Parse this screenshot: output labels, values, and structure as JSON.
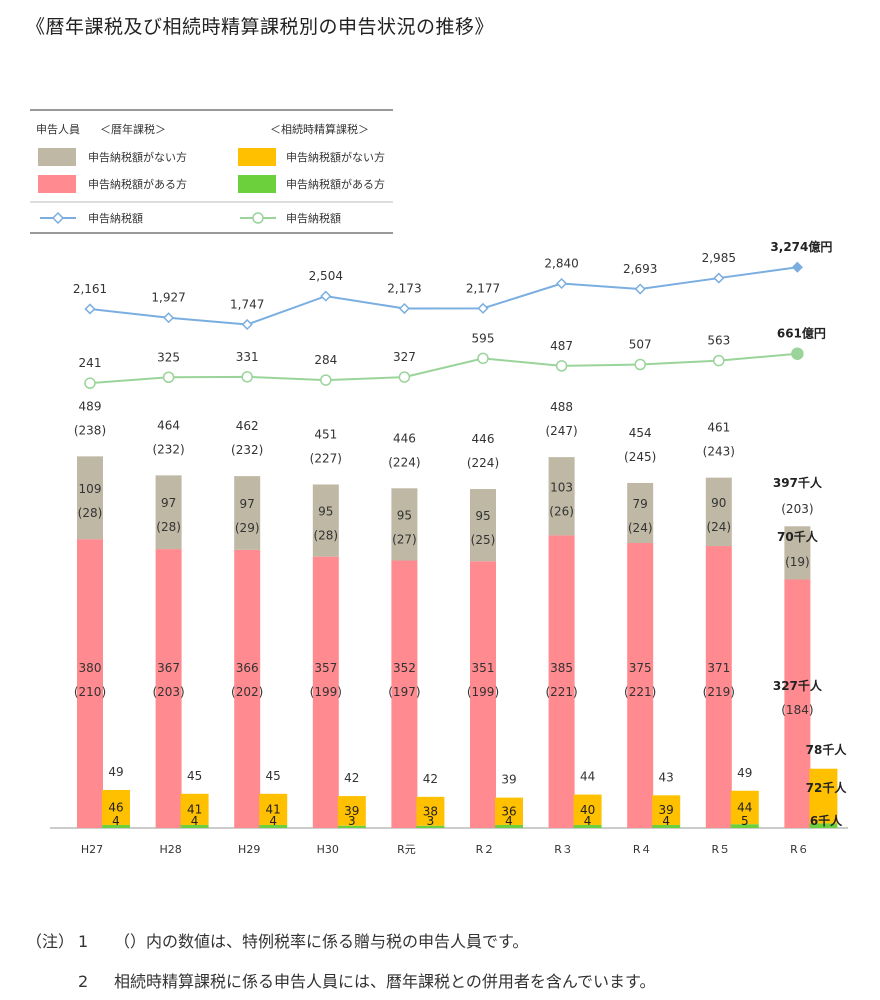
{
  "title": "《暦年課税及び相続時精算課税別の申告状況の推移》",
  "colors": {
    "reki_nashi": "#bfb8a5",
    "reki_ari": "#ff8a8f",
    "souzoku_nashi": "#ffc000",
    "souzoku_ari": "#6ccf3c",
    "line_reki": "#7aaee0",
    "line_souzoku": "#9ad49a"
  },
  "legend": {
    "people_label": "申告人員",
    "reki_header": "＜暦年課税＞",
    "souzoku_header": "＜相続時精算課税＞",
    "reki_nashi": "申告納税額がない方",
    "reki_ari": "申告納税額がある方",
    "souzoku_nashi": "申告納税額がない方",
    "souzoku_ari": "申告納税額がある方",
    "line_reki": "申告納税額",
    "line_souzoku": "申告納税額"
  },
  "chart_data": {
    "type": "bar",
    "categories": [
      "H27",
      "H28",
      "H29",
      "H30",
      "R元",
      "R２",
      "R３",
      "R４",
      "R５",
      "R６"
    ],
    "series": [
      {
        "key": "reki_ari",
        "values": [
          380,
          367,
          366,
          357,
          352,
          351,
          385,
          375,
          371,
          327
        ],
        "sub": [
          210,
          203,
          202,
          199,
          197,
          199,
          221,
          221,
          219,
          184
        ]
      },
      {
        "key": "reki_nashi",
        "values": [
          109,
          97,
          97,
          95,
          95,
          95,
          103,
          79,
          90,
          70
        ],
        "sub": [
          28,
          28,
          29,
          28,
          27,
          25,
          26,
          24,
          24,
          19
        ]
      },
      {
        "key": "souzoku_ari",
        "values": [
          4,
          4,
          4,
          3,
          3,
          4,
          4,
          4,
          5,
          6
        ]
      },
      {
        "key": "souzoku_nashi",
        "values": [
          46,
          41,
          41,
          39,
          38,
          36,
          40,
          39,
          44,
          72
        ]
      }
    ],
    "reki_total": [
      489,
      464,
      462,
      451,
      446,
      446,
      488,
      454,
      461,
      397
    ],
    "reki_total_sub": [
      238,
      232,
      232,
      227,
      224,
      224,
      247,
      245,
      243,
      203
    ],
    "souzoku_total": [
      49,
      45,
      45,
      42,
      42,
      39,
      44,
      43,
      49,
      78
    ],
    "lines": [
      {
        "key": "line_reki",
        "values": [
          2161,
          1927,
          1747,
          2504,
          2173,
          2177,
          2840,
          2693,
          2985,
          3274
        ]
      },
      {
        "key": "line_souzoku",
        "values": [
          241,
          325,
          331,
          284,
          327,
          595,
          487,
          507,
          563,
          661
        ]
      }
    ],
    "last_labels": {
      "line_reki": "3,274億円",
      "line_souzoku": "661億円",
      "reki_total": "397千人",
      "reki_nashi": "70千人",
      "reki_ari": "327千人",
      "souzoku_total": "78千人",
      "souzoku_nashi": "72千人",
      "souzoku_ari": "6千人"
    }
  },
  "notes": {
    "prefix": "（注）",
    "n1": "1",
    "t1": "（）内の数値は、特例税率に係る贈与税の申告人員です。",
    "n2": "2",
    "t2": "相続時精算課税に係る申告人員には、暦年課税との併用者を含んでいます。"
  }
}
